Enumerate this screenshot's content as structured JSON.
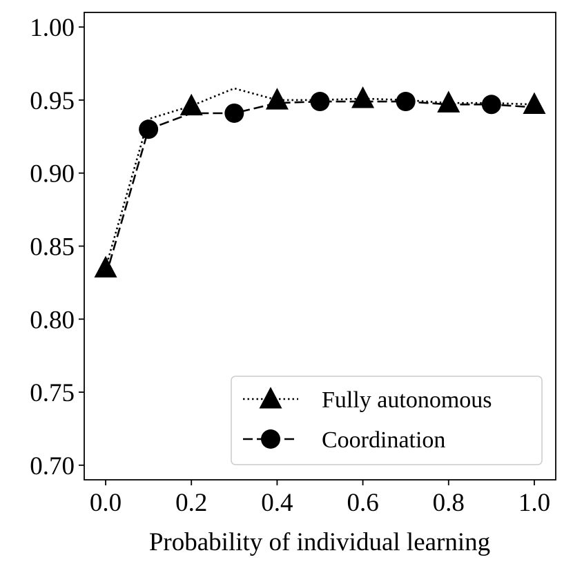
{
  "chart_data": {
    "type": "line",
    "title": "",
    "xlabel": "Probability of individual learning",
    "ylabel": "",
    "xlim": [
      -0.05,
      1.05
    ],
    "ylim": [
      0.69,
      1.01
    ],
    "xticks": [
      0.0,
      0.2,
      0.4,
      0.6,
      0.8,
      1.0
    ],
    "xtick_labels": [
      "0.0",
      "0.2",
      "0.4",
      "0.6",
      "0.8",
      "1.0"
    ],
    "yticks": [
      0.7,
      0.75,
      0.8,
      0.85,
      0.9,
      0.95,
      1.0
    ],
    "ytick_labels": [
      "0.70",
      "0.75",
      "0.80",
      "0.85",
      "0.90",
      "0.95",
      "1.00"
    ],
    "grid": false,
    "legend_position": "bottom-right",
    "series": [
      {
        "name": "Fully autonomous",
        "line_style": "dotted",
        "marker": "triangle",
        "color": "#000000",
        "x": [
          0.0,
          0.1,
          0.2,
          0.3,
          0.4,
          0.5,
          0.6,
          0.7,
          0.8,
          0.9,
          1.0
        ],
        "y": [
          0.835,
          0.937,
          0.946,
          0.958,
          0.95,
          0.95,
          0.951,
          0.95,
          0.948,
          0.948,
          0.947
        ],
        "marker_x": [
          0.0,
          0.2,
          0.4,
          0.6,
          0.8,
          1.0
        ]
      },
      {
        "name": "Coordination",
        "line_style": "dashed",
        "marker": "circle",
        "color": "#000000",
        "x": [
          0.0,
          0.1,
          0.2,
          0.3,
          0.4,
          0.5,
          0.6,
          0.7,
          0.8,
          0.9,
          1.0
        ],
        "y": [
          0.829,
          0.93,
          0.941,
          0.941,
          0.948,
          0.949,
          0.949,
          0.949,
          0.947,
          0.947,
          0.945
        ],
        "marker_x": [
          0.1,
          0.3,
          0.5,
          0.7,
          0.9
        ]
      }
    ]
  }
}
